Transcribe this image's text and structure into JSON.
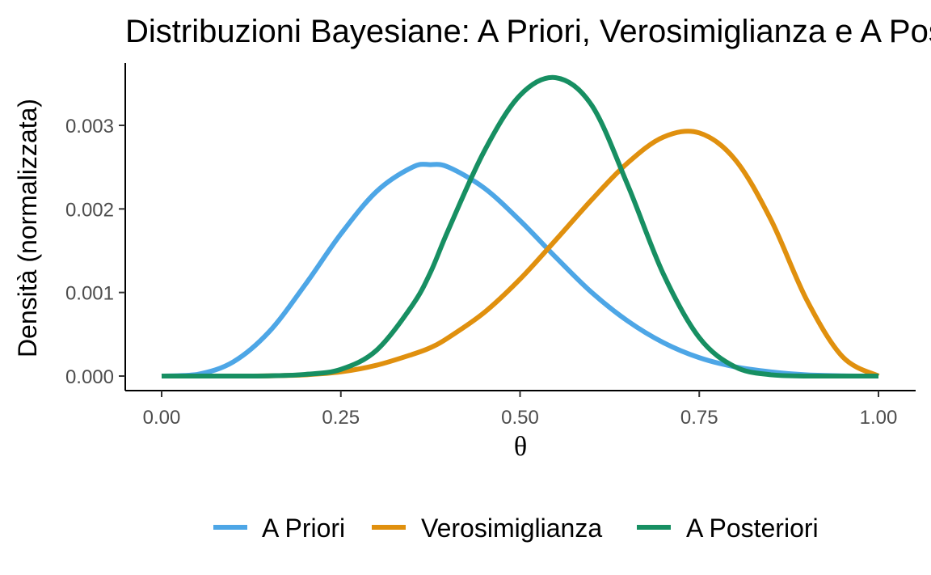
{
  "chart_data": {
    "type": "line",
    "title": "Distribuzioni Bayesiane: A Priori, Verosimiglianza e A Posteriori",
    "xlabel": "θ",
    "ylabel": "Densità (normalizzata)",
    "xlim": [
      0,
      1
    ],
    "ylim": [
      0,
      0.0036
    ],
    "x_ticks": [
      0,
      0.25,
      0.5,
      0.75,
      1
    ],
    "x_tick_labels": [
      "0.00",
      "0.25",
      "0.50",
      "0.75",
      "1.00"
    ],
    "y_ticks": [
      0,
      0.001,
      0.002,
      0.003
    ],
    "y_tick_labels": [
      "0.000",
      "0.001",
      "0.002",
      "0.003"
    ],
    "grid": false,
    "legend_position": "bottom",
    "x": [
      0,
      0.05,
      0.1,
      0.15,
      0.2,
      0.25,
      0.3,
      0.35,
      0.375,
      0.4,
      0.45,
      0.5,
      0.55,
      0.6,
      0.65,
      0.7,
      0.75,
      0.8,
      0.85,
      0.9,
      0.95,
      1.0
    ],
    "series": [
      {
        "name": "A Priori",
        "color": "#4da6e6",
        "values": [
          0,
          2e-05,
          0.00017,
          0.00053,
          0.00109,
          0.0017,
          0.00221,
          0.0025,
          0.00253,
          0.0025,
          0.00225,
          0.00186,
          0.00142,
          0.001,
          0.00066,
          0.0004,
          0.00022,
          0.00011,
          5e-05,
          1.5e-05,
          3e-06,
          0
        ]
      },
      {
        "name": "Verosimiglianza",
        "color": "#e0900e",
        "values": [
          0,
          0,
          0,
          3e-06,
          1.5e-05,
          5e-05,
          0.00013,
          0.00026,
          0.00034,
          0.00046,
          0.00076,
          0.00116,
          0.00163,
          0.00211,
          0.00255,
          0.00286,
          0.00291,
          0.00259,
          0.00187,
          0.00091,
          0.00023,
          0
        ]
      },
      {
        "name": "A Posteriori",
        "color": "#178f62",
        "values": [
          0,
          0,
          0,
          3e-06,
          2e-05,
          8e-05,
          0.00031,
          0.00085,
          0.00124,
          0.00175,
          0.00269,
          0.00336,
          0.00357,
          0.00324,
          0.00229,
          0.00122,
          0.00046,
          0.00011,
          1.5e-05,
          0,
          0,
          0
        ]
      }
    ]
  }
}
